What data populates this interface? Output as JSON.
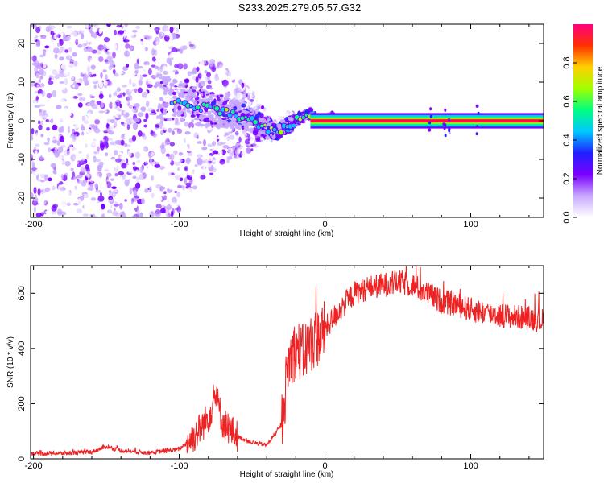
{
  "page_title": "S233.2025.279.05.57.G32",
  "chart_data": [
    {
      "type": "heatmap",
      "title": "S233.2025.279.05.57.G32",
      "xlabel": "Height of straight line (km)",
      "ylabel": "Frequency (Hz)",
      "xlim": [
        -202,
        150
      ],
      "ylim": [
        -25,
        25
      ],
      "xticks": [
        -200,
        -100,
        0,
        100
      ],
      "yticks": [
        -20,
        -10,
        0,
        10,
        20
      ],
      "colorbar": {
        "label": "Normalized spectral amplitude",
        "range": [
          0,
          1
        ],
        "ticks": [
          0.0,
          0.2,
          0.4,
          0.6,
          0.8
        ],
        "tick_labels": [
          "0.0",
          "0.2",
          "0.4",
          "0.6",
          "0.8"
        ],
        "colors": [
          "#ffffff",
          "#c8a8ff",
          "#7a00ff",
          "#2020ff",
          "#00c8ff",
          "#00ff80",
          "#a0ff00",
          "#ffd000",
          "#ff3000",
          "#ff0080"
        ]
      },
      "ridge": {
        "description_points_x": [
          -110,
          -100,
          -90,
          -80,
          -70,
          -60,
          -50,
          -45,
          -40,
          -35,
          -30,
          -25,
          -20,
          -15,
          -10,
          -5,
          0,
          5,
          10,
          150
        ],
        "description_points_y": [
          6,
          5,
          4,
          3,
          2.5,
          1.5,
          0,
          -1,
          -2,
          -3,
          -2,
          -1,
          0,
          1,
          2,
          0,
          0,
          1,
          0,
          0
        ]
      }
    },
    {
      "type": "line",
      "xlabel": "Height of straight line (km)",
      "ylabel": "SNR (10 * v/v)",
      "xlim": [
        -202,
        150
      ],
      "ylim": [
        0,
        700
      ],
      "xticks": [
        -200,
        -100,
        0,
        100
      ],
      "yticks": [
        0,
        200,
        400,
        600
      ],
      "line_color": "#ee2222",
      "series": [
        {
          "name": "SNR",
          "x": [
            -202,
            -180,
            -160,
            -150,
            -140,
            -120,
            -100,
            -90,
            -80,
            -75,
            -70,
            -60,
            -50,
            -40,
            -30,
            -25,
            -20,
            -15,
            -10,
            -5,
            0,
            10,
            20,
            30,
            40,
            50,
            60,
            70,
            80,
            90,
            100,
            110,
            120,
            130,
            140,
            150
          ],
          "y": [
            20,
            20,
            25,
            45,
            30,
            22,
            35,
            80,
            150,
            230,
            130,
            80,
            60,
            50,
            120,
            350,
            400,
            380,
            420,
            440,
            470,
            540,
            600,
            620,
            630,
            640,
            630,
            600,
            570,
            560,
            540,
            530,
            520,
            515,
            510,
            500
          ]
        }
      ]
    }
  ]
}
